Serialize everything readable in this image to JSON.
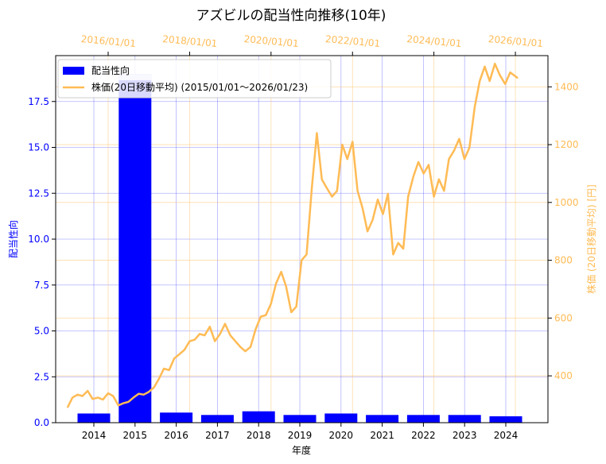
{
  "chart_data": {
    "type": "bar+line",
    "title": "アズビルの配当性向推移(10年)",
    "xlabel": "年度",
    "ylabel_left": "配当性向",
    "ylabel_right": "株価 (20日移動平均) [円]",
    "categories": [
      "2014",
      "2015",
      "2016",
      "2017",
      "2018",
      "2019",
      "2020",
      "2021",
      "2022",
      "2023",
      "2024"
    ],
    "left_axis": {
      "ylim": [
        0,
        20
      ],
      "ticks": [
        "0.0",
        "2.5",
        "5.0",
        "7.5",
        "10.0",
        "12.5",
        "15.0",
        "17.5"
      ]
    },
    "right_axis": {
      "ylim": [
        238,
        1508
      ],
      "ticks": [
        "400",
        "600",
        "800",
        "1000",
        "1200",
        "1400"
      ]
    },
    "top_axis": {
      "ticks": [
        "2016/01/01",
        "2018/01/01",
        "2020/01/01",
        "2022/01/01",
        "2024/01/01",
        "2026/01/01"
      ]
    },
    "grid": true,
    "legend": {
      "position": "top-left",
      "entries": [
        {
          "label": "配当性向",
          "kind": "bar",
          "color": "#0000ff"
        },
        {
          "label": "株価(20日移動平均) (2015/01/01～2026/01/23)",
          "kind": "line",
          "color": "#ffbb55"
        }
      ]
    },
    "series": [
      {
        "name": "配当性向",
        "kind": "bar",
        "color": "#0000ff",
        "values": [
          0.5,
          19.0,
          0.55,
          0.42,
          0.62,
          0.42,
          0.5,
          0.42,
          0.42,
          0.42,
          0.35
        ]
      },
      {
        "name": "株価(20日移動平均) (2015/01/01～2026/01/23)",
        "kind": "line",
        "color": "#ffbb55",
        "points": [
          [
            "2015-01-01",
            290
          ],
          [
            "2015-02-15",
            325
          ],
          [
            "2015-04-01",
            335
          ],
          [
            "2015-05-15",
            330
          ],
          [
            "2015-07-01",
            348
          ],
          [
            "2015-08-15",
            320
          ],
          [
            "2015-10-01",
            325
          ],
          [
            "2015-11-15",
            318
          ],
          [
            "2016-01-01",
            340
          ],
          [
            "2016-02-15",
            330
          ],
          [
            "2016-04-01",
            298
          ],
          [
            "2016-05-15",
            305
          ],
          [
            "2016-07-01",
            310
          ],
          [
            "2016-08-15",
            325
          ],
          [
            "2016-10-01",
            338
          ],
          [
            "2016-11-15",
            335
          ],
          [
            "2017-01-01",
            345
          ],
          [
            "2017-02-15",
            360
          ],
          [
            "2017-04-01",
            390
          ],
          [
            "2017-05-15",
            425
          ],
          [
            "2017-07-01",
            420
          ],
          [
            "2017-08-15",
            460
          ],
          [
            "2017-10-01",
            475
          ],
          [
            "2017-11-15",
            490
          ],
          [
            "2018-01-01",
            520
          ],
          [
            "2018-02-15",
            525
          ],
          [
            "2018-04-01",
            545
          ],
          [
            "2018-05-15",
            540
          ],
          [
            "2018-07-01",
            570
          ],
          [
            "2018-08-15",
            520
          ],
          [
            "2018-10-01",
            545
          ],
          [
            "2018-11-15",
            580
          ],
          [
            "2019-01-01",
            540
          ],
          [
            "2019-02-15",
            520
          ],
          [
            "2019-04-01",
            500
          ],
          [
            "2019-05-15",
            485
          ],
          [
            "2019-07-01",
            500
          ],
          [
            "2019-08-15",
            560
          ],
          [
            "2019-10-01",
            605
          ],
          [
            "2019-11-15",
            610
          ],
          [
            "2020-01-01",
            650
          ],
          [
            "2020-02-15",
            720
          ],
          [
            "2020-04-01",
            760
          ],
          [
            "2020-05-15",
            710
          ],
          [
            "2020-07-01",
            620
          ],
          [
            "2020-08-15",
            640
          ],
          [
            "2020-10-01",
            800
          ],
          [
            "2020-11-15",
            820
          ],
          [
            "2021-01-01",
            1050
          ],
          [
            "2021-02-15",
            1240
          ],
          [
            "2021-04-01",
            1080
          ],
          [
            "2021-05-15",
            1050
          ],
          [
            "2021-07-01",
            1020
          ],
          [
            "2021-08-15",
            1040
          ],
          [
            "2021-10-01",
            1200
          ],
          [
            "2021-11-15",
            1150
          ],
          [
            "2022-01-01",
            1210
          ],
          [
            "2022-02-15",
            1040
          ],
          [
            "2022-04-01",
            980
          ],
          [
            "2022-05-15",
            900
          ],
          [
            "2022-07-01",
            940
          ],
          [
            "2022-08-15",
            1010
          ],
          [
            "2022-10-01",
            960
          ],
          [
            "2022-11-15",
            1030
          ],
          [
            "2023-01-01",
            820
          ],
          [
            "2023-02-15",
            860
          ],
          [
            "2023-04-01",
            840
          ],
          [
            "2023-05-15",
            1020
          ],
          [
            "2023-07-01",
            1090
          ],
          [
            "2023-08-15",
            1140
          ],
          [
            "2023-10-01",
            1100
          ],
          [
            "2023-11-15",
            1130
          ],
          [
            "2024-01-01",
            1020
          ],
          [
            "2024-02-15",
            1080
          ],
          [
            "2024-04-01",
            1040
          ],
          [
            "2024-05-15",
            1150
          ],
          [
            "2024-07-01",
            1180
          ],
          [
            "2024-08-15",
            1220
          ],
          [
            "2024-10-01",
            1150
          ],
          [
            "2024-11-15",
            1190
          ],
          [
            "2025-01-01",
            1330
          ],
          [
            "2025-02-15",
            1420
          ],
          [
            "2025-04-01",
            1470
          ],
          [
            "2025-05-15",
            1420
          ],
          [
            "2025-07-01",
            1480
          ],
          [
            "2025-08-15",
            1440
          ],
          [
            "2025-10-01",
            1410
          ],
          [
            "2025-11-15",
            1450
          ],
          [
            "2026-01-23",
            1430
          ]
        ]
      }
    ]
  }
}
